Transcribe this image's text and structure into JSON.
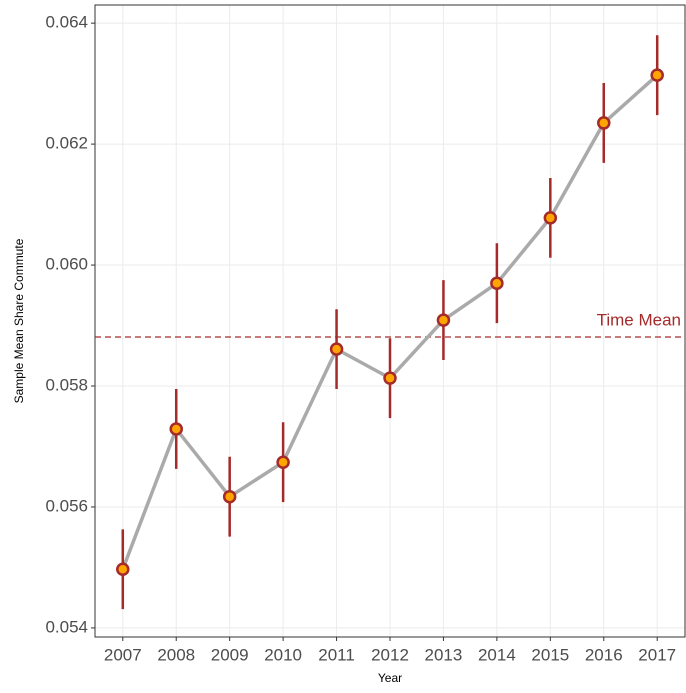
{
  "chart_data": {
    "type": "errorbar-line",
    "x_label": "Year",
    "y_label": "Sample Mean Share Commute",
    "x": [
      2007,
      2008,
      2009,
      2010,
      2011,
      2012,
      2013,
      2014,
      2015,
      2016,
      2017
    ],
    "series": [
      {
        "line_color": "#aaaaaa",
        "color": "#a52a2a",
        "point_fill": "#ffa500",
        "values": [
          0.05497,
          0.05729,
          0.05617,
          0.05674,
          0.05861,
          0.05813,
          0.05909,
          0.0597,
          0.06078,
          0.06235,
          0.06314
        ],
        "errors": [
          0.00066,
          0.00066,
          0.00066,
          0.00066,
          0.00066,
          0.00066,
          0.00066,
          0.00066,
          0.00066,
          0.00066,
          0.00066
        ]
      }
    ],
    "hline": {
      "value": 0.05881,
      "label": "Time Mean",
      "color": "#a52a2a"
    },
    "xlim": [
      2006.48,
      2017.52
    ],
    "xticks": [
      2007,
      2008,
      2009,
      2010,
      2011,
      2012,
      2013,
      2014,
      2015,
      2016,
      2017
    ],
    "ylim": [
      0.05385,
      0.0643
    ],
    "yticks": [
      0.054,
      0.056,
      0.058,
      {
        "value": 0.06,
        "label": "0.060"
      },
      0.062,
      0.064
    ],
    "grid": true
  }
}
